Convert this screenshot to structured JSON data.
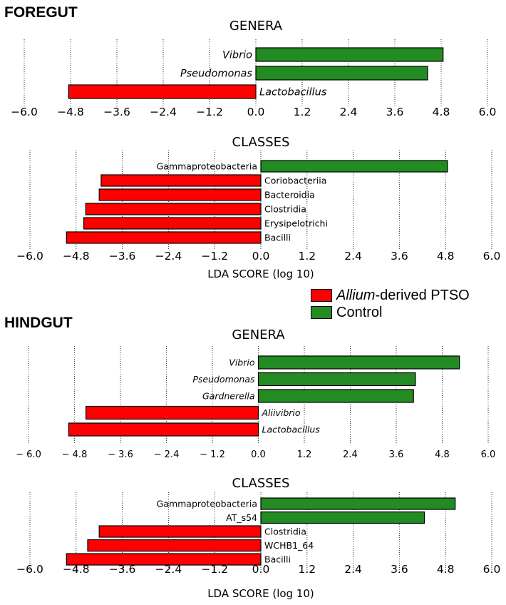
{
  "colors": {
    "ptso": "#ff0000",
    "control": "#228b22"
  },
  "sections": [
    {
      "title": "FOREGUT"
    },
    {
      "title": "HINDGUT"
    }
  ],
  "legend": {
    "items": [
      {
        "italic": "Allium",
        "text": "-derived PTSO",
        "color": "#ff0000"
      },
      {
        "italic": "",
        "text": "Control",
        "color": "#228b22"
      }
    ]
  },
  "chart_data": [
    {
      "type": "bar",
      "orientation": "horizontal",
      "title": "GENERA",
      "xlabel": "",
      "xlim": [
        -6.0,
        6.0
      ],
      "xticks": [
        "−6.0",
        "−4.8",
        "−3.6",
        "−2.4",
        "−1.2",
        "0.0",
        "1.2",
        "2.4",
        "3.6",
        "4.8",
        "6.0"
      ],
      "italic_labels": true,
      "categories": [
        "Vibrio",
        "Pseudomonas",
        "Lactobacillus"
      ],
      "values": [
        4.85,
        4.45,
        -4.85
      ]
    },
    {
      "type": "bar",
      "orientation": "horizontal",
      "title": "CLASSES",
      "xlabel": "LDA SCORE (log 10)",
      "xlim": [
        -6.0,
        6.0
      ],
      "xticks": [
        "−6.0",
        "−4.8",
        "−3.6",
        "−2.4",
        "−1.2",
        "0.0",
        "1.2",
        "2.4",
        "3.6",
        "4.8",
        "6.0"
      ],
      "italic_labels": false,
      "categories": [
        "Gammaproteobacteria",
        "Coriobacteriia",
        "Bacteroidia",
        "Clostridia",
        "Erysipelotrichi",
        "Bacilli"
      ],
      "values": [
        4.85,
        -4.15,
        -4.2,
        -4.55,
        -4.6,
        -5.05
      ]
    },
    {
      "type": "bar",
      "orientation": "horizontal",
      "title": "GENERA",
      "xlabel": "",
      "xlim": [
        -6.0,
        6.0
      ],
      "xticks": [
        "− 6.0",
        "− 4.8",
        "− 3.6",
        "− 2.4",
        "− 1.2",
        "0.0",
        "1.2",
        "2.4",
        "3.6",
        "4.8",
        "6.0"
      ],
      "italic_labels": true,
      "categories": [
        "Vibrio",
        "Pseudomonas",
        "Gardnerella",
        "Aliivibrio",
        "Lactobacillus"
      ],
      "values": [
        5.25,
        4.1,
        4.05,
        -4.5,
        -4.95
      ]
    },
    {
      "type": "bar",
      "orientation": "horizontal",
      "title": "CLASSES",
      "xlabel": "LDA SCORE (log 10)",
      "xlim": [
        -6.0,
        6.0
      ],
      "xticks": [
        "−6.0",
        "−4.8",
        "−3.6",
        "−2.4",
        "−1.2",
        "0.0",
        "1.2",
        "2.4",
        "3.6",
        "4.8",
        "6.0"
      ],
      "italic_labels": false,
      "categories": [
        "Gammaproteobacteria",
        "AT_s54",
        "Clostridia",
        "WCHB1_64",
        "Bacilli"
      ],
      "values": [
        5.05,
        4.25,
        -4.2,
        -4.5,
        -5.05
      ]
    }
  ]
}
